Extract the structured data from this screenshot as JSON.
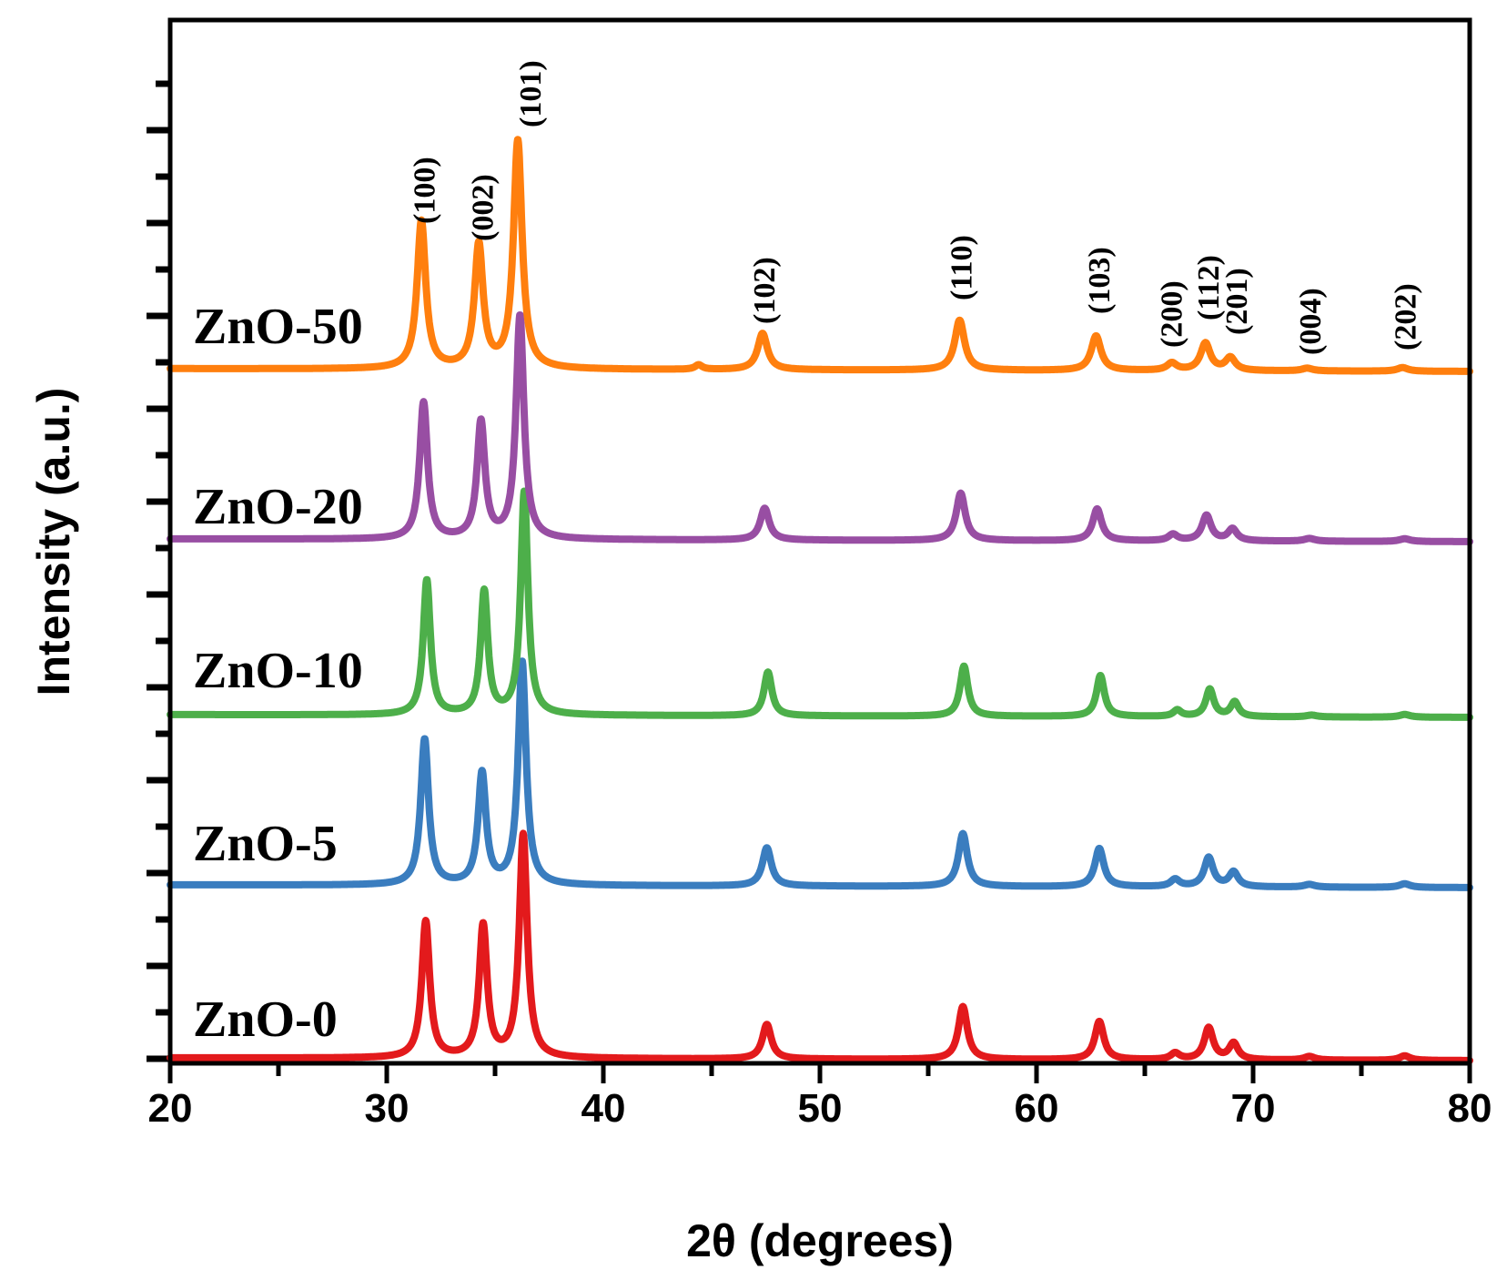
{
  "chart_data": {
    "type": "line",
    "title": "",
    "xlabel": "2θ (degrees)",
    "ylabel": "Intensity (a.u.)",
    "xlim": [
      20,
      80
    ],
    "x_ticks": [
      "20",
      "30",
      "40",
      "50",
      "60",
      "70",
      "80"
    ],
    "y_ticks_shown": false,
    "grid": false,
    "legend": "none; series names printed beside each curve",
    "stacked_offsets": true,
    "series": [
      {
        "name": "ZnO-0",
        "color": "#e31a1c",
        "baseline": 0,
        "peaks": [
          {
            "x": 31.8,
            "height": 1.5,
            "width": 0.22
          },
          {
            "x": 34.45,
            "height": 1.45,
            "width": 0.22
          },
          {
            "x": 36.3,
            "height": 2.45,
            "width": 0.22
          },
          {
            "x": 47.55,
            "height": 0.38,
            "width": 0.25
          },
          {
            "x": 56.6,
            "height": 0.58,
            "width": 0.25
          },
          {
            "x": 62.9,
            "height": 0.42,
            "width": 0.25
          },
          {
            "x": 66.4,
            "height": 0.07,
            "width": 0.25
          },
          {
            "x": 67.95,
            "height": 0.35,
            "width": 0.25
          },
          {
            "x": 69.1,
            "height": 0.18,
            "width": 0.25
          },
          {
            "x": 72.6,
            "height": 0.04,
            "width": 0.3
          },
          {
            "x": 77.0,
            "height": 0.05,
            "width": 0.3
          }
        ]
      },
      {
        "name": "ZnO-5",
        "color": "#3a7dbf",
        "baseline": 1.9,
        "peaks": [
          {
            "x": 31.75,
            "height": 1.6,
            "width": 0.22
          },
          {
            "x": 34.4,
            "height": 1.22,
            "width": 0.22
          },
          {
            "x": 36.25,
            "height": 2.45,
            "width": 0.22
          },
          {
            "x": 47.55,
            "height": 0.42,
            "width": 0.25
          },
          {
            "x": 56.6,
            "height": 0.58,
            "width": 0.25
          },
          {
            "x": 62.9,
            "height": 0.42,
            "width": 0.25
          },
          {
            "x": 66.4,
            "height": 0.08,
            "width": 0.25
          },
          {
            "x": 67.95,
            "height": 0.32,
            "width": 0.25
          },
          {
            "x": 69.1,
            "height": 0.16,
            "width": 0.25
          },
          {
            "x": 72.6,
            "height": 0.03,
            "width": 0.3
          },
          {
            "x": 77.0,
            "height": 0.04,
            "width": 0.3
          }
        ]
      },
      {
        "name": "ZnO-10",
        "color": "#4daf4a",
        "baseline": 3.78,
        "peaks": [
          {
            "x": 31.85,
            "height": 1.48,
            "width": 0.2
          },
          {
            "x": 34.5,
            "height": 1.35,
            "width": 0.2
          },
          {
            "x": 36.35,
            "height": 2.45,
            "width": 0.2
          },
          {
            "x": 47.6,
            "height": 0.48,
            "width": 0.22
          },
          {
            "x": 56.65,
            "height": 0.55,
            "width": 0.22
          },
          {
            "x": 62.95,
            "height": 0.45,
            "width": 0.22
          },
          {
            "x": 66.5,
            "height": 0.07,
            "width": 0.22
          },
          {
            "x": 68.0,
            "height": 0.3,
            "width": 0.22
          },
          {
            "x": 69.15,
            "height": 0.16,
            "width": 0.22
          },
          {
            "x": 72.7,
            "height": 0.02,
            "width": 0.3
          },
          {
            "x": 77.0,
            "height": 0.03,
            "width": 0.3
          }
        ]
      },
      {
        "name": "ZnO-20",
        "color": "#984ea3",
        "baseline": 5.7,
        "peaks": [
          {
            "x": 31.7,
            "height": 1.5,
            "width": 0.22
          },
          {
            "x": 34.35,
            "height": 1.28,
            "width": 0.22
          },
          {
            "x": 36.15,
            "height": 2.45,
            "width": 0.22
          },
          {
            "x": 47.45,
            "height": 0.35,
            "width": 0.25
          },
          {
            "x": 56.5,
            "height": 0.52,
            "width": 0.25
          },
          {
            "x": 62.8,
            "height": 0.35,
            "width": 0.25
          },
          {
            "x": 66.3,
            "height": 0.07,
            "width": 0.25
          },
          {
            "x": 67.85,
            "height": 0.28,
            "width": 0.25
          },
          {
            "x": 69.05,
            "height": 0.13,
            "width": 0.25
          },
          {
            "x": 72.6,
            "height": 0.03,
            "width": 0.3
          },
          {
            "x": 77.0,
            "height": 0.03,
            "width": 0.3
          }
        ]
      },
      {
        "name": "ZnO-50",
        "color": "#ff7f0e",
        "baseline": 7.5,
        "peaks": [
          {
            "x": 31.6,
            "height": 1.62,
            "width": 0.24
          },
          {
            "x": 34.25,
            "height": 1.35,
            "width": 0.24
          },
          {
            "x": 36.05,
            "height": 2.5,
            "width": 0.24
          },
          {
            "x": 44.4,
            "height": 0.05,
            "width": 0.2
          },
          {
            "x": 47.35,
            "height": 0.4,
            "width": 0.27
          },
          {
            "x": 56.45,
            "height": 0.55,
            "width": 0.27
          },
          {
            "x": 62.75,
            "height": 0.38,
            "width": 0.27
          },
          {
            "x": 66.25,
            "height": 0.08,
            "width": 0.27
          },
          {
            "x": 67.8,
            "height": 0.3,
            "width": 0.27
          },
          {
            "x": 68.95,
            "height": 0.14,
            "width": 0.27
          },
          {
            "x": 72.5,
            "height": 0.03,
            "width": 0.3
          },
          {
            "x": 76.9,
            "height": 0.04,
            "width": 0.3
          }
        ]
      }
    ],
    "annotations": [
      {
        "text": "(100)",
        "x": 31.7
      },
      {
        "text": "(002)",
        "x": 34.4
      },
      {
        "text": "(101)",
        "x": 36.6
      },
      {
        "text": "(102)",
        "x": 47.4
      },
      {
        "text": "(110)",
        "x": 56.5
      },
      {
        "text": "(103)",
        "x": 62.85
      },
      {
        "text": "(200)",
        "x": 66.2
      },
      {
        "text": "(112)",
        "x": 67.9
      },
      {
        "text": "(201)",
        "x": 69.2
      },
      {
        "text": "(004)",
        "x": 72.6
      },
      {
        "text": "(202)",
        "x": 77.0
      }
    ]
  }
}
